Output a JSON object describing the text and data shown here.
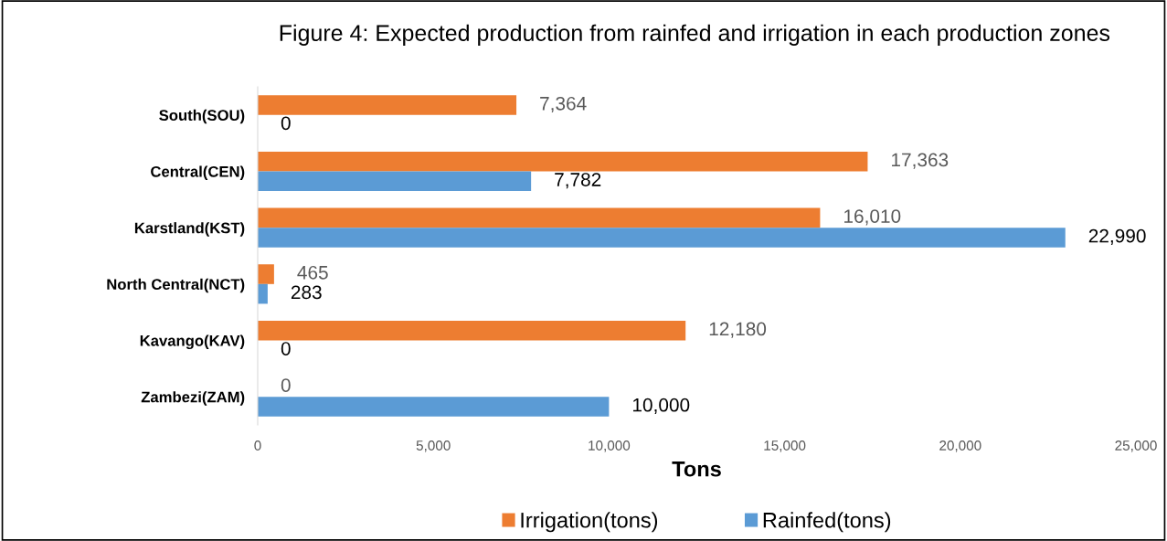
{
  "chart_data": {
    "type": "bar",
    "orientation": "horizontal",
    "title": "Figure 4: Expected production from rainfed and irrigation in each production zones",
    "xlabel": "Tons",
    "categories": [
      "South(SOU)",
      "Central(CEN)",
      "Karstland(KST)",
      "North Central(NCT)",
      "Kavango(KAV)",
      "Zambezi(ZAM)"
    ],
    "series": [
      {
        "name": "Irrigation(tons)",
        "color": "#ed7d31",
        "values": [
          7364,
          17363,
          16010,
          465,
          12180,
          0
        ],
        "value_labels": [
          "7,364",
          "17,363",
          "16,010",
          "465",
          "12,180",
          "0"
        ]
      },
      {
        "name": "Rainfed(tons)",
        "color": "#5b9bd5",
        "values": [
          0,
          7782,
          22990,
          283,
          0,
          10000
        ],
        "value_labels": [
          "0",
          "7,782",
          "22,990",
          "283",
          "0",
          "10,000"
        ]
      }
    ],
    "xlim": [
      0,
      25000
    ],
    "xticks": [
      0,
      {
        "value": 5000,
        "label": "5,000"
      },
      {
        "value": 10000,
        "label": "10,000"
      },
      {
        "value": 15000,
        "label": "15,000"
      },
      {
        "value": 20000,
        "label": "20,000"
      },
      {
        "value": 25000,
        "label": "25,000"
      }
    ],
    "legend": "bottom",
    "grid": false
  }
}
